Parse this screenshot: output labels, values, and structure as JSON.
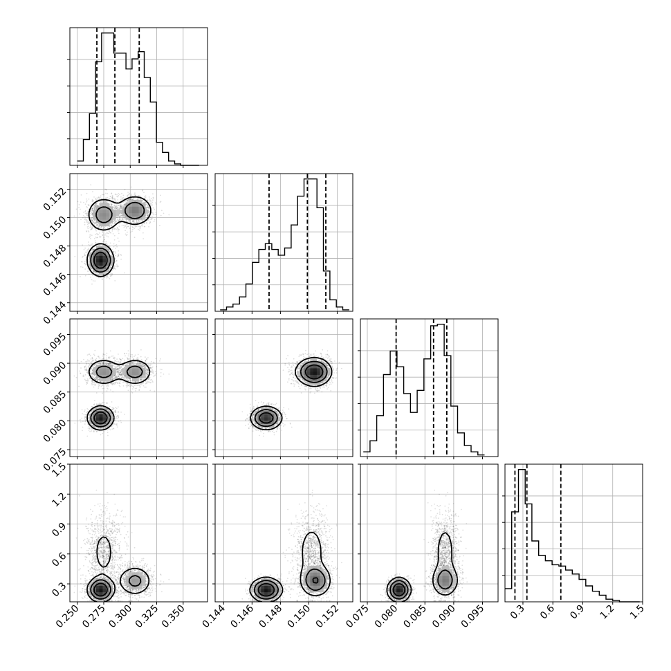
{
  "chart_data": {
    "type": "corner",
    "parameters": [
      {
        "range": [
          0.243,
          0.373
        ],
        "ticks": [
          "0.250",
          "0.275",
          "0.300",
          "0.325",
          "0.350"
        ]
      },
      {
        "range": [
          0.1434,
          0.1531
        ],
        "ticks": [
          "0.144",
          "0.146",
          "0.148",
          "0.150",
          "0.152"
        ]
      },
      {
        "range": [
          0.0738,
          0.0977
        ],
        "ticks": [
          "0.075",
          "0.080",
          "0.085",
          "0.090",
          "0.095"
        ]
      },
      {
        "range": [
          0.12,
          1.5
        ],
        "ticks": [
          "0.3",
          "0.6",
          "0.9",
          "1.2",
          "1.5"
        ]
      }
    ],
    "histograms": [
      {
        "param": 0,
        "edges_start": 0.25,
        "bin_width": 0.00575,
        "counts": [
          3,
          18,
          36,
          72,
          92,
          92,
          78,
          78,
          67,
          74,
          79,
          61,
          44,
          16,
          9,
          3,
          1,
          0,
          0,
          0
        ],
        "quantiles": [
          0.2685,
          0.2855,
          0.3085
        ]
      },
      {
        "param": 1,
        "edges_start": 0.14375,
        "bin_width": 0.000455,
        "counts": [
          1,
          3,
          5,
          10,
          19,
          34,
          43,
          47,
          43,
          39,
          44,
          60,
          80,
          92,
          92,
          72,
          28,
          8,
          3,
          1
        ],
        "quantiles": [
          0.1472,
          0.1499,
          0.1512
        ]
      },
      {
        "param": 2,
        "edges_start": 0.0743,
        "bin_width": 0.00117,
        "counts": [
          3,
          10,
          26,
          52,
          67,
          57,
          40,
          28,
          42,
          62,
          83,
          84,
          64,
          32,
          15,
          7,
          3,
          1
        ],
        "quantiles": [
          0.08,
          0.0865,
          0.0888
        ]
      },
      {
        "param": 3,
        "edges_start": 0.12,
        "bin_width": 0.0675,
        "counts": [
          10,
          68,
          100,
          74,
          46,
          35,
          31,
          28,
          27,
          24,
          21,
          17,
          12,
          8,
          5,
          2,
          1,
          0,
          0,
          0
        ],
        "quantiles": [
          0.22,
          0.34,
          0.68
        ]
      }
    ],
    "modes": [
      {
        "params": [
          0.275,
          0.1502,
          0.0885,
          0.62
        ],
        "sd": [
          0.0085,
          0.00065,
          0.0012,
          0.2
        ],
        "weight": 0.3
      },
      {
        "params": [
          0.3045,
          0.1505,
          0.0885,
          0.33
        ],
        "sd": [
          0.0085,
          0.00055,
          0.0012,
          0.08
        ],
        "weight": 0.3
      },
      {
        "params": [
          0.272,
          0.147,
          0.0805,
          0.24
        ],
        "sd": [
          0.006,
          0.00055,
          0.001,
          0.06
        ],
        "weight": 0.4
      }
    ],
    "colors": {
      "line": "#000000",
      "grid": "#b0b0b0",
      "points": "#000000"
    },
    "grid": true
  }
}
